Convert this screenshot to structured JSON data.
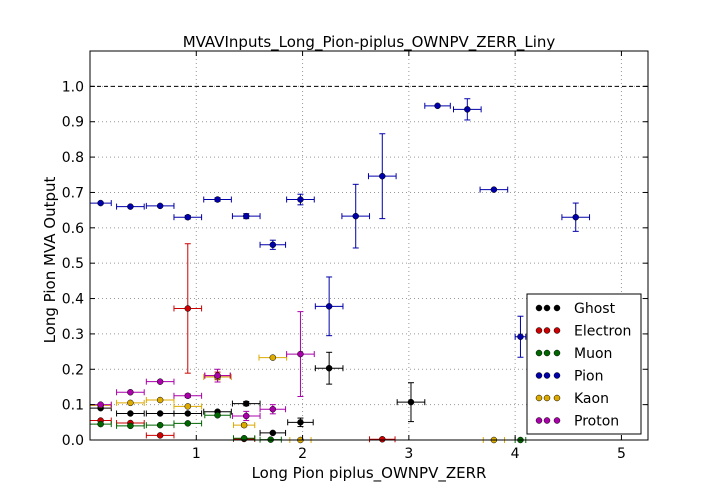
{
  "chart_data": {
    "type": "scatter",
    "title": "MVAVInputs_Long_Pion-piplus_OWNPV_ZERR_Liny",
    "xlabel": "Long Pion piplus_OWNPV_ZERR",
    "ylabel": "Long Pion MVA Output",
    "xlim": [
      0,
      5.25
    ],
    "ylim": [
      0,
      1.1
    ],
    "xticks": [
      1,
      2,
      3,
      4,
      5
    ],
    "yticks": [
      0.0,
      0.1,
      0.2,
      0.3,
      0.4,
      0.5,
      0.6,
      0.7,
      0.8,
      0.9,
      1.0
    ],
    "ytick_labels": [
      "0.0",
      "0.1",
      "0.2",
      "0.3",
      "0.4",
      "0.5",
      "0.6",
      "0.7",
      "0.8",
      "0.9",
      "1.0"
    ],
    "xtick_labels": [
      "1",
      "2",
      "3",
      "4",
      "5"
    ],
    "grid": true,
    "reference_line": 1.0,
    "legend_position": "lower-right",
    "series": [
      {
        "name": "Ghost",
        "color": "#000000",
        "points": [
          {
            "x": 0.1,
            "y": 0.09,
            "xerr": 0.1,
            "yerr": 0.004
          },
          {
            "x": 0.38,
            "y": 0.075,
            "xerr": 0.13,
            "yerr": 0.003
          },
          {
            "x": 0.66,
            "y": 0.075,
            "xerr": 0.13,
            "yerr": 0.003
          },
          {
            "x": 0.92,
            "y": 0.075,
            "xerr": 0.13,
            "yerr": 0.003
          },
          {
            "x": 1.2,
            "y": 0.08,
            "xerr": 0.13,
            "yerr": 0.004
          },
          {
            "x": 1.47,
            "y": 0.103,
            "xerr": 0.13,
            "yerr": 0.006
          },
          {
            "x": 1.72,
            "y": 0.02,
            "xerr": 0.12,
            "yerr": 0.004
          },
          {
            "x": 1.98,
            "y": 0.05,
            "xerr": 0.12,
            "yerr": 0.012
          },
          {
            "x": 2.25,
            "y": 0.203,
            "xerr": 0.13,
            "yerr": 0.045
          },
          {
            "x": 3.02,
            "y": 0.107,
            "xerr": 0.13,
            "yerr": 0.055
          }
        ]
      },
      {
        "name": "Electron",
        "color": "#cc0000",
        "points": [
          {
            "x": 0.1,
            "y": 0.055,
            "xerr": 0.1,
            "yerr": 0.003
          },
          {
            "x": 0.38,
            "y": 0.048,
            "xerr": 0.13,
            "yerr": 0.003
          },
          {
            "x": 0.66,
            "y": 0.013,
            "xerr": 0.13,
            "yerr": 0.004
          },
          {
            "x": 0.92,
            "y": 0.372,
            "xerr": 0.13,
            "yerr": 0.183
          },
          {
            "x": 1.2,
            "y": 0.182,
            "xerr": 0.12,
            "yerr": 0.01
          },
          {
            "x": 1.45,
            "y": 0.003,
            "xerr": 0.1,
            "yerr": 0.002
          },
          {
            "x": 2.75,
            "y": 0.002,
            "xerr": 0.12,
            "yerr": 0.002
          }
        ]
      },
      {
        "name": "Muon",
        "color": "#006600",
        "points": [
          {
            "x": 0.1,
            "y": 0.045,
            "xerr": 0.1,
            "yerr": 0.003
          },
          {
            "x": 0.38,
            "y": 0.04,
            "xerr": 0.13,
            "yerr": 0.003
          },
          {
            "x": 0.66,
            "y": 0.042,
            "xerr": 0.13,
            "yerr": 0.003
          },
          {
            "x": 0.92,
            "y": 0.047,
            "xerr": 0.13,
            "yerr": 0.003
          },
          {
            "x": 1.2,
            "y": 0.07,
            "xerr": 0.12,
            "yerr": 0.004
          },
          {
            "x": 1.45,
            "y": 0.005,
            "xerr": 0.1,
            "yerr": 0.002
          },
          {
            "x": 1.7,
            "y": 0.001,
            "xerr": 0.1,
            "yerr": 0.001
          },
          {
            "x": 4.05,
            "y": 0.0,
            "xerr": 0.05,
            "yerr": 0.0
          }
        ]
      },
      {
        "name": "Pion",
        "color": "#0000aa",
        "points": [
          {
            "x": 0.1,
            "y": 0.67,
            "xerr": 0.1,
            "yerr": 0.004
          },
          {
            "x": 0.38,
            "y": 0.66,
            "xerr": 0.13,
            "yerr": 0.004
          },
          {
            "x": 0.66,
            "y": 0.662,
            "xerr": 0.13,
            "yerr": 0.004
          },
          {
            "x": 0.92,
            "y": 0.63,
            "xerr": 0.13,
            "yerr": 0.005
          },
          {
            "x": 1.2,
            "y": 0.68,
            "xerr": 0.13,
            "yerr": 0.005
          },
          {
            "x": 1.47,
            "y": 0.633,
            "xerr": 0.13,
            "yerr": 0.007
          },
          {
            "x": 1.72,
            "y": 0.552,
            "xerr": 0.12,
            "yerr": 0.013
          },
          {
            "x": 1.98,
            "y": 0.68,
            "xerr": 0.13,
            "yerr": 0.015
          },
          {
            "x": 2.25,
            "y": 0.378,
            "xerr": 0.13,
            "yerr": 0.083
          },
          {
            "x": 2.5,
            "y": 0.633,
            "xerr": 0.13,
            "yerr": 0.09
          },
          {
            "x": 2.75,
            "y": 0.746,
            "xerr": 0.13,
            "yerr": 0.12
          },
          {
            "x": 3.27,
            "y": 0.945,
            "xerr": 0.12,
            "yerr": 0.004
          },
          {
            "x": 3.55,
            "y": 0.935,
            "xerr": 0.13,
            "yerr": 0.03
          },
          {
            "x": 3.8,
            "y": 0.708,
            "xerr": 0.13,
            "yerr": 0.004
          },
          {
            "x": 4.05,
            "y": 0.292,
            "xerr": 0.05,
            "yerr": 0.058
          },
          {
            "x": 4.57,
            "y": 0.63,
            "xerr": 0.13,
            "yerr": 0.04
          }
        ]
      },
      {
        "name": "Kaon",
        "color": "#ddaa00",
        "points": [
          {
            "x": 0.1,
            "y": 0.098,
            "xerr": 0.1,
            "yerr": 0.003
          },
          {
            "x": 0.38,
            "y": 0.105,
            "xerr": 0.13,
            "yerr": 0.003
          },
          {
            "x": 0.66,
            "y": 0.113,
            "xerr": 0.13,
            "yerr": 0.004
          },
          {
            "x": 0.92,
            "y": 0.095,
            "xerr": 0.13,
            "yerr": 0.004
          },
          {
            "x": 1.2,
            "y": 0.178,
            "xerr": 0.13,
            "yerr": 0.008
          },
          {
            "x": 1.45,
            "y": 0.042,
            "xerr": 0.1,
            "yerr": 0.005
          },
          {
            "x": 1.72,
            "y": 0.233,
            "xerr": 0.13,
            "yerr": 0.004
          },
          {
            "x": 1.98,
            "y": 0.0,
            "xerr": 0.1,
            "yerr": 0.0
          },
          {
            "x": 3.8,
            "y": 0.0,
            "xerr": 0.1,
            "yerr": 0.0
          }
        ]
      },
      {
        "name": "Proton",
        "color": "#aa00aa",
        "points": [
          {
            "x": 0.1,
            "y": 0.1,
            "xerr": 0.1,
            "yerr": 0.003
          },
          {
            "x": 0.38,
            "y": 0.135,
            "xerr": 0.13,
            "yerr": 0.004
          },
          {
            "x": 0.66,
            "y": 0.165,
            "xerr": 0.13,
            "yerr": 0.004
          },
          {
            "x": 0.92,
            "y": 0.125,
            "xerr": 0.13,
            "yerr": 0.005
          },
          {
            "x": 1.2,
            "y": 0.182,
            "xerr": 0.12,
            "yerr": 0.018
          },
          {
            "x": 1.47,
            "y": 0.068,
            "xerr": 0.13,
            "yerr": 0.013
          },
          {
            "x": 1.72,
            "y": 0.087,
            "xerr": 0.12,
            "yerr": 0.013
          },
          {
            "x": 1.98,
            "y": 0.243,
            "xerr": 0.13,
            "yerr": 0.12
          }
        ]
      }
    ]
  }
}
